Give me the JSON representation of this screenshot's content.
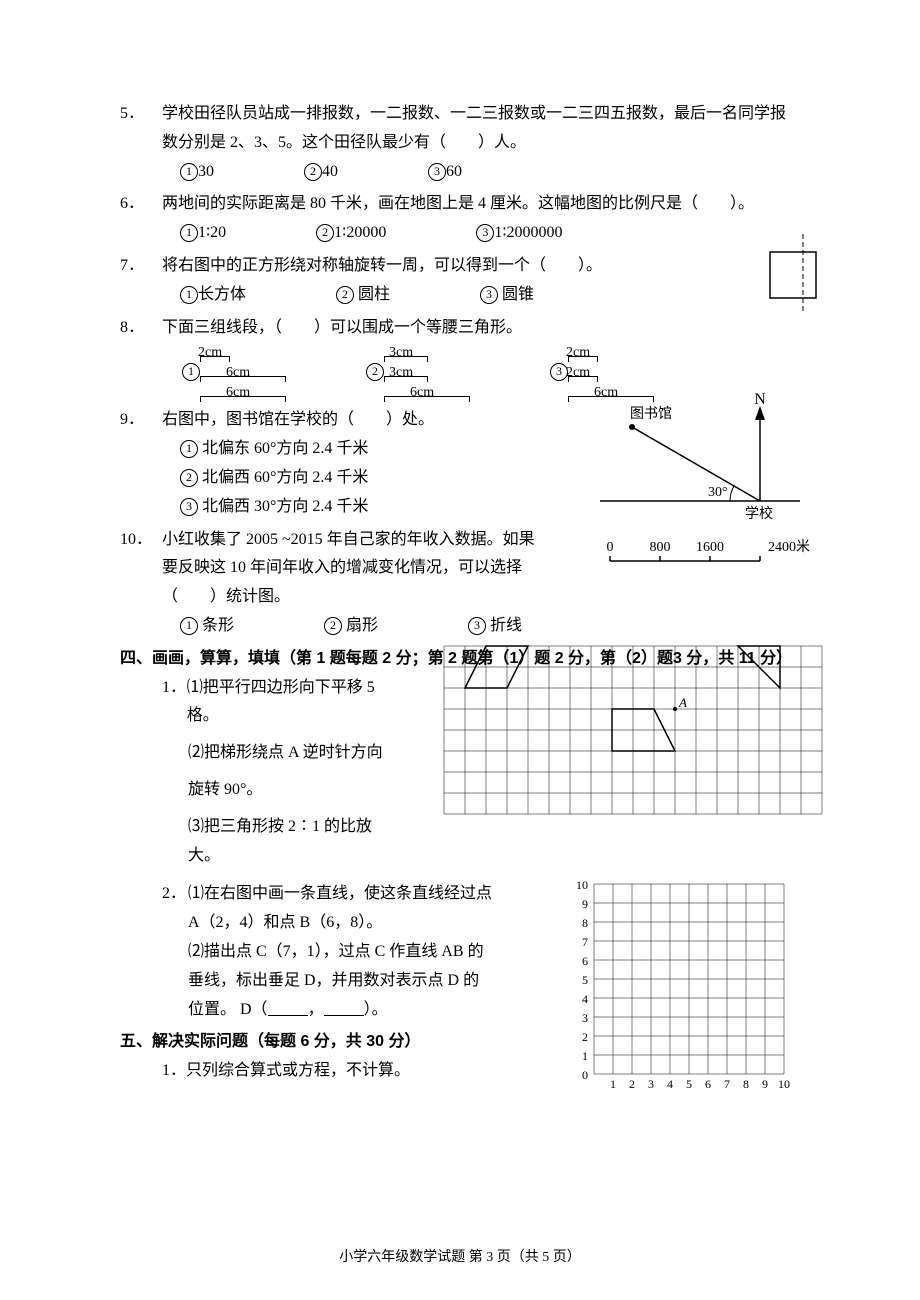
{
  "q5": {
    "num": "5．",
    "text": "学校田径队员站成一排报数，一二报数、一二三报数或一二三四五报数，最后一名同学报数分别是 2、3、5。这个田径队最少有（　　）人。",
    "opts": [
      "30",
      "40",
      "60"
    ]
  },
  "q6": {
    "num": "6．",
    "text": "两地间的实际距离是 80 千米，画在地图上是 4 厘米。这幅地图的比例尺是（　　）。",
    "opts": [
      "1∶20",
      "1∶20000",
      "1∶2000000"
    ]
  },
  "q7": {
    "num": "7．",
    "text": "将右图中的正方形绕对称轴旋转一周，可以得到一个（　　）。",
    "opts": [
      "长方体",
      " 圆柱",
      " 圆锥"
    ]
  },
  "q8": {
    "num": "8．",
    "text": "下面三组线段，（　　）可以围成一个等腰三角形。",
    "groups": [
      {
        "segs": [
          "2cm",
          "6cm",
          "6cm"
        ]
      },
      {
        "segs": [
          "3cm",
          "3cm",
          "6cm"
        ]
      },
      {
        "segs": [
          "2cm",
          "2cm",
          "6cm"
        ]
      }
    ]
  },
  "q9": {
    "num": "9．",
    "text": "右图中，图书馆在学校的（　　）处。",
    "opts": [
      " 北偏东 60°方向 2.4 千米",
      " 北偏西 60°方向 2.4 千米",
      " 北偏西 30°方向 2.4 千米"
    ],
    "map": {
      "lib": "图书馆",
      "school": "学校",
      "angle": "30°",
      "north": "N",
      "scale": [
        "0",
        "800",
        "1600",
        "2400米"
      ]
    }
  },
  "q10": {
    "num": "10．",
    "text": "小红收集了 2005 ~2015 年自己家的年收入数据。如果要反映这 10 年间年收入的增减变化情况，可以选择（　　）统计图。",
    "opts": [
      " 条形",
      " 扇形",
      " 折线"
    ]
  },
  "sec4": {
    "head": "四、画画，算算，填填（第 1 题每题 2 分；第 2 题第（1）题 2 分，第（2）题3 分，共 11 分）",
    "q1": {
      "num": "1．",
      "p1": "⑴把平行四边形向下平移 5 格。",
      "p2": "⑵把梯形绕点 A 逆时针方向",
      "p2b": "旋转 90°。",
      "p3": "⑶把三角形按 2∶1 的比放大。"
    },
    "q2": {
      "num": "2．",
      "p1": "⑴在右图中画一条直线，使这条直线经过点",
      "p1b": "A（2，4）和点 B（6，8）。",
      "p2": "⑵描出点 C（7，1），过点 C 作直线 AB 的",
      "p2b": "垂线，标出垂足 D，并用数对表示点 D 的",
      "p2c": "位置。 D（",
      "p2d": "，",
      "p2e": "）。"
    },
    "grid1": {
      "cols": 18,
      "rows": 8,
      "cell": 21,
      "A_label": "A"
    },
    "grid2": {
      "max": 10
    }
  },
  "sec5": {
    "head": "五、解决实际问题（每题 6 分，共 30 分）",
    "q1": "1．只列综合算式或方程，不计算。"
  },
  "footer": {
    "text": "小学六年级数学试题  第 3 页（共 5 页）"
  }
}
